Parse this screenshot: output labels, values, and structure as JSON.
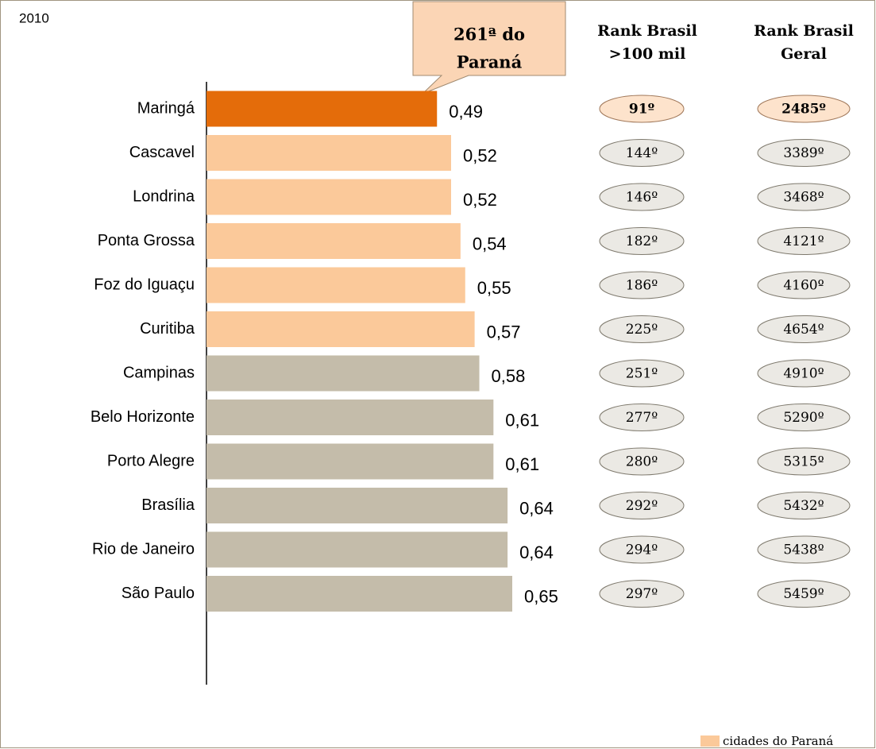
{
  "chart_data": {
    "type": "bar",
    "title": "2010",
    "categories": [
      "Maringá",
      "Cascavel",
      "Londrina",
      "Ponta Grossa",
      "Foz do Iguaçu",
      "Curitiba",
      "Campinas",
      "Belo Horizonte",
      "Porto Alegre",
      "Brasília",
      "Rio de Janeiro",
      "São Paulo"
    ],
    "values": [
      0.49,
      0.52,
      0.52,
      0.54,
      0.55,
      0.57,
      0.58,
      0.61,
      0.61,
      0.64,
      0.64,
      0.65
    ],
    "value_labels": [
      "0,49",
      "0,52",
      "0,52",
      "0,54",
      "0,55",
      "0,57",
      "0,58",
      "0,61",
      "0,61",
      "0,64",
      "0,64",
      "0,65"
    ],
    "colors": [
      "#e46c0a",
      "#fbc99a",
      "#fbc99a",
      "#fbc99a",
      "#fbc99a",
      "#fbc99a",
      "#c4bcaa",
      "#c4bcaa",
      "#c4bcaa",
      "#c4bcaa",
      "#c4bcaa",
      "#c4bcaa"
    ],
    "highlight_color": "#e46c0a",
    "annotation": [
      "261ª do",
      "Paraná"
    ],
    "columns": [
      {
        "header": [
          "Rank Brasil",
          ">100 mil"
        ],
        "values": [
          "91º",
          "144º",
          "146º",
          "182º",
          "186º",
          "225º",
          "251º",
          "277º",
          "280º",
          "292º",
          "294º",
          "297º"
        ]
      },
      {
        "header": [
          "Rank Brasil",
          "Geral"
        ],
        "values": [
          "2485º",
          "3389º",
          "3468º",
          "4121º",
          "4160º",
          "4654º",
          "4910º",
          "5290º",
          "5315º",
          "5432º",
          "5438º",
          "5459º"
        ]
      }
    ],
    "legend": {
      "label": "cidades do Paraná",
      "color": "#fbc99a"
    }
  }
}
